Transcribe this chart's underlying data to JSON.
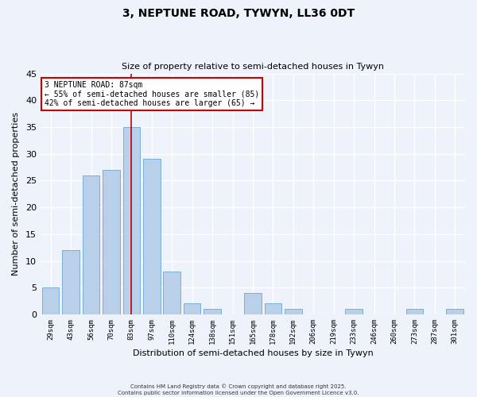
{
  "title_line1": "3, NEPTUNE ROAD, TYWYN, LL36 0DT",
  "title_line2": "Size of property relative to semi-detached houses in Tywyn",
  "xlabel": "Distribution of semi-detached houses by size in Tywyn",
  "ylabel": "Number of semi-detached properties",
  "categories": [
    "29sqm",
    "43sqm",
    "56sqm",
    "70sqm",
    "83sqm",
    "97sqm",
    "110sqm",
    "124sqm",
    "138sqm",
    "151sqm",
    "165sqm",
    "178sqm",
    "192sqm",
    "206sqm",
    "219sqm",
    "233sqm",
    "246sqm",
    "260sqm",
    "273sqm",
    "287sqm",
    "301sqm"
  ],
  "values": [
    5,
    12,
    26,
    27,
    35,
    29,
    8,
    2,
    1,
    0,
    4,
    2,
    1,
    0,
    0,
    1,
    0,
    0,
    1,
    0,
    1
  ],
  "bar_color": "#b8d0ea",
  "bar_edge_color": "#7bafd4",
  "vline_x_index": 4,
  "vline_color": "#bb0000",
  "ylim": [
    0,
    45
  ],
  "yticks": [
    0,
    5,
    10,
    15,
    20,
    25,
    30,
    35,
    40,
    45
  ],
  "annotation_title": "3 NEPTUNE ROAD: 87sqm",
  "annotation_line1": "← 55% of semi-detached houses are smaller (85)",
  "annotation_line2": "42% of semi-detached houses are larger (65) →",
  "annotation_box_color": "#ffffff",
  "annotation_box_edge": "#cc0000",
  "footer_line1": "Contains HM Land Registry data © Crown copyright and database right 2025.",
  "footer_line2": "Contains public sector information licensed under the Open Government Licence v3.0.",
  "background_color": "#eef2fa",
  "grid_color": "#ffffff"
}
